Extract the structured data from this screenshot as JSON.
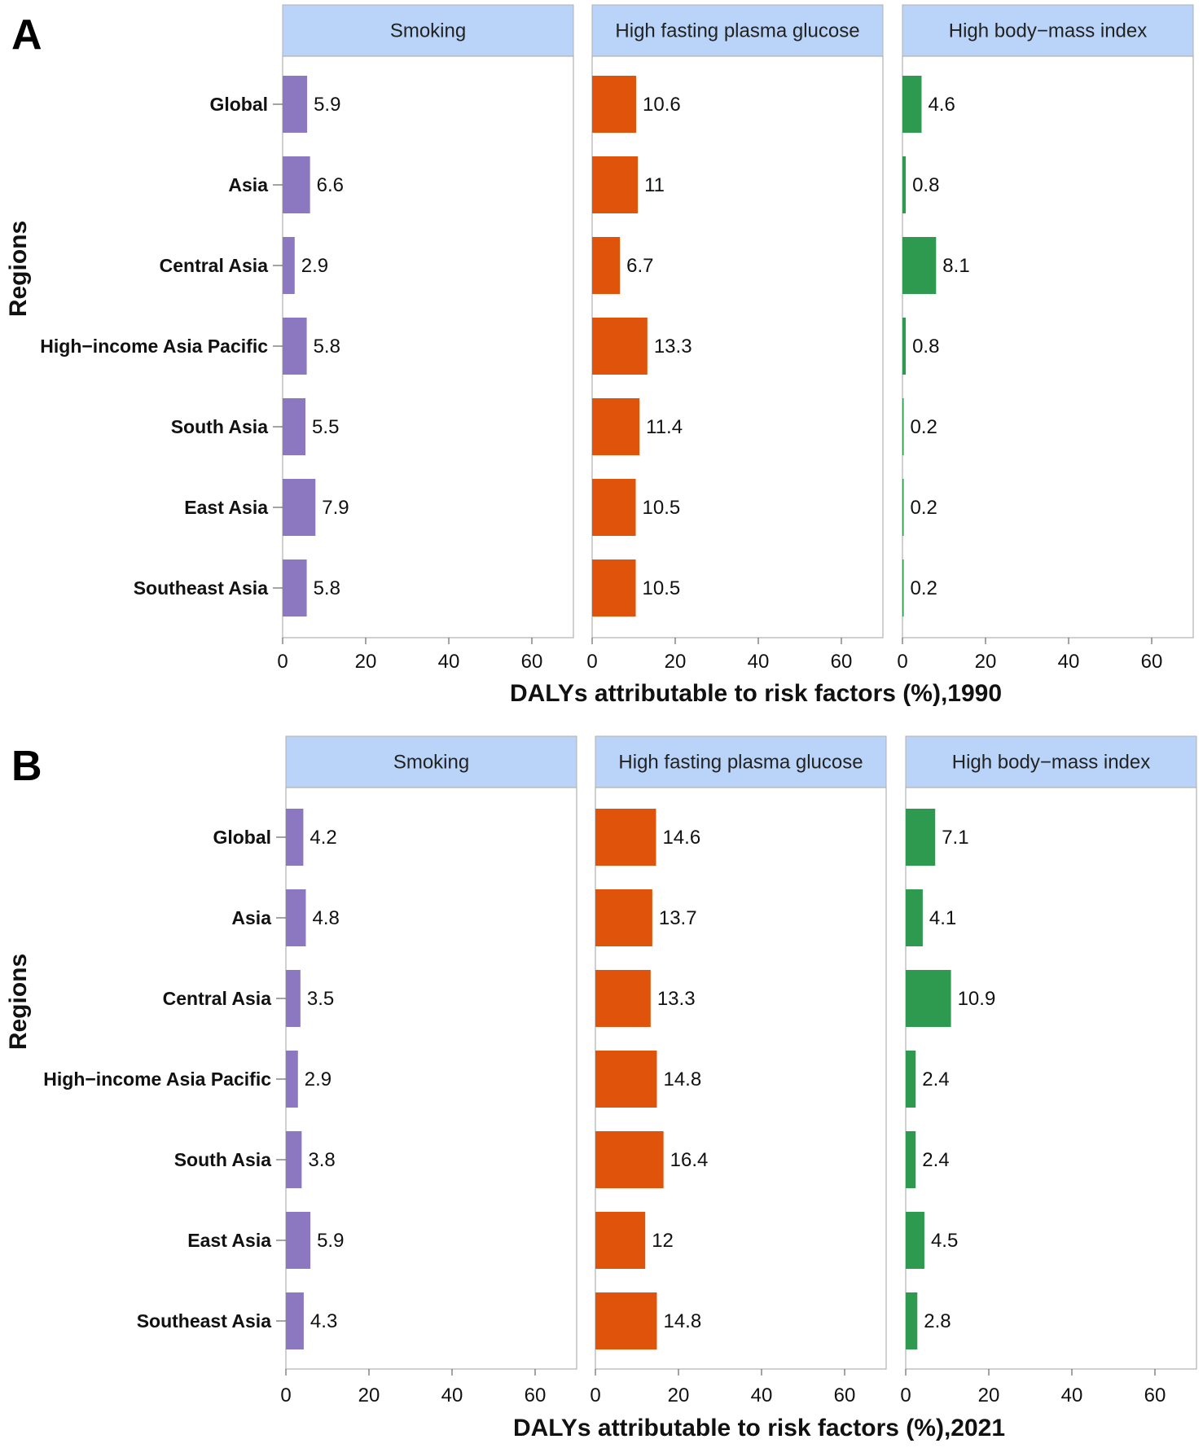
{
  "colors": {
    "Smoking": "#8b78c0",
    "High fasting plasma glucose": "#e0530b",
    "High body−mass index": "#2e9a4f",
    "strip": "#b9d4f8",
    "frame": "#b0b0b0"
  },
  "chart_data": [
    {
      "type": "bar",
      "panel": "A",
      "year": 1990,
      "xlabel": "DALYs attributable to risk factors (%),1990",
      "ylabel": "Regions",
      "xlim": [
        0,
        70
      ],
      "xticks": [
        0,
        20,
        40,
        60
      ],
      "categories": [
        "Global",
        "Asia",
        "Central Asia",
        "High−income Asia Pacific",
        "South Asia",
        "East Asia",
        "Southeast Asia"
      ],
      "series": [
        {
          "name": "Smoking",
          "values": [
            5.9,
            6.6,
            2.9,
            5.8,
            5.5,
            7.9,
            5.8
          ]
        },
        {
          "name": "High fasting plasma glucose",
          "values": [
            10.6,
            11,
            6.7,
            13.3,
            11.4,
            10.5,
            10.5
          ]
        },
        {
          "name": "High body−mass index",
          "values": [
            4.6,
            0.8,
            8.1,
            0.8,
            0.2,
            0.2,
            0.2
          ]
        }
      ]
    },
    {
      "type": "bar",
      "panel": "B",
      "year": 2021,
      "xlabel": "DALYs attributable to risk factors (%),2021",
      "ylabel": "Regions",
      "xlim": [
        0,
        70
      ],
      "xticks": [
        0,
        20,
        40,
        60
      ],
      "categories": [
        "Global",
        "Asia",
        "Central Asia",
        "High−income Asia Pacific",
        "South Asia",
        "East Asia",
        "Southeast Asia"
      ],
      "series": [
        {
          "name": "Smoking",
          "values": [
            4.2,
            4.8,
            3.5,
            2.9,
            3.8,
            5.9,
            4.3
          ]
        },
        {
          "name": "High fasting plasma glucose",
          "values": [
            14.6,
            13.7,
            13.3,
            14.8,
            16.4,
            12,
            14.8
          ]
        },
        {
          "name": "High body−mass index",
          "values": [
            7.1,
            4.1,
            10.9,
            2.4,
            2.4,
            4.5,
            2.8
          ]
        }
      ]
    }
  ]
}
